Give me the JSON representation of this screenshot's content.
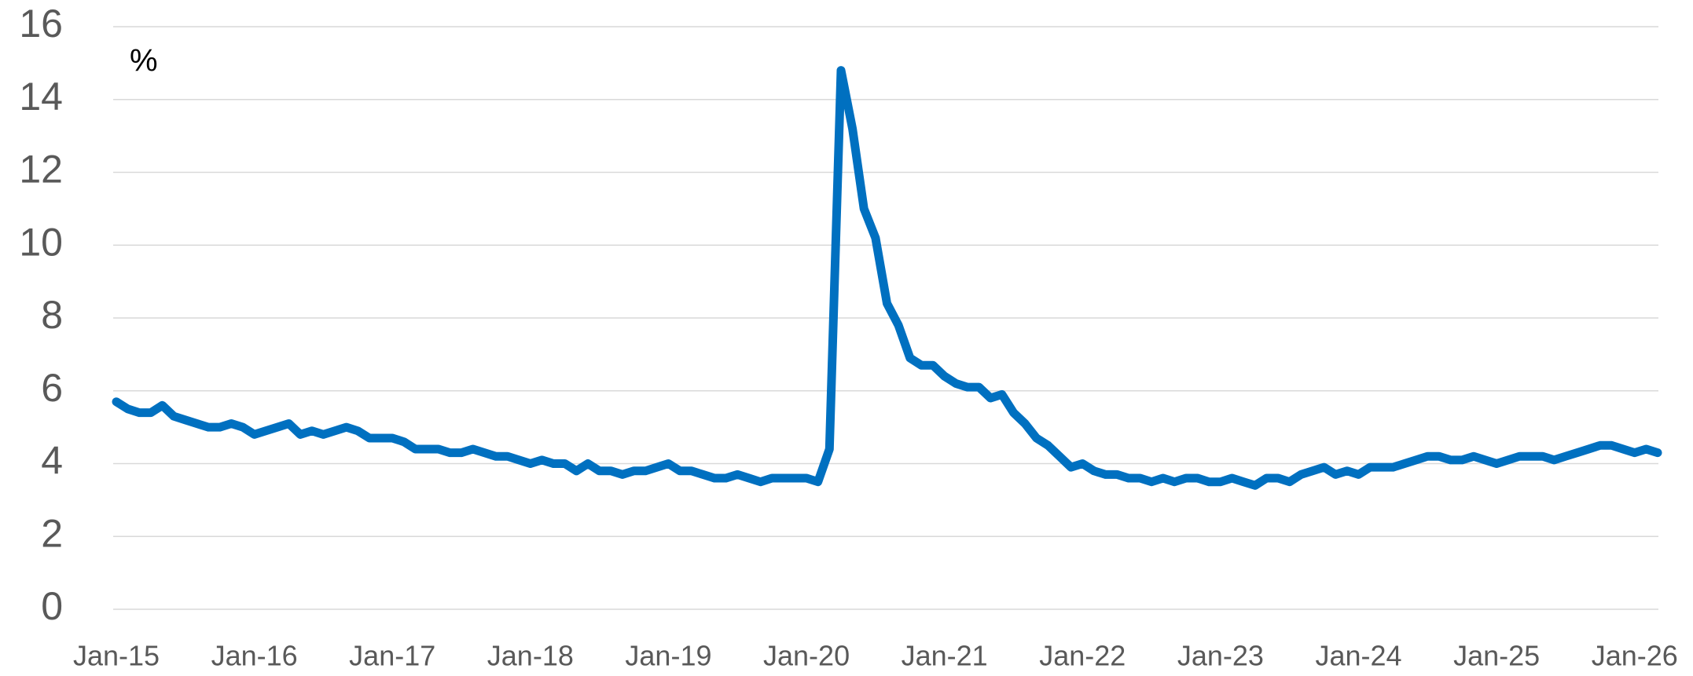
{
  "chart_data": {
    "type": "line",
    "unit_label": "%",
    "x": [
      "2015-01",
      "2015-02",
      "2015-03",
      "2015-04",
      "2015-05",
      "2015-06",
      "2015-07",
      "2015-08",
      "2015-09",
      "2015-10",
      "2015-11",
      "2015-12",
      "2016-01",
      "2016-02",
      "2016-03",
      "2016-04",
      "2016-05",
      "2016-06",
      "2016-07",
      "2016-08",
      "2016-09",
      "2016-10",
      "2016-11",
      "2016-12",
      "2017-01",
      "2017-02",
      "2017-03",
      "2017-04",
      "2017-05",
      "2017-06",
      "2017-07",
      "2017-08",
      "2017-09",
      "2017-10",
      "2017-11",
      "2017-12",
      "2018-01",
      "2018-02",
      "2018-03",
      "2018-04",
      "2018-05",
      "2018-06",
      "2018-07",
      "2018-08",
      "2018-09",
      "2018-10",
      "2018-11",
      "2018-12",
      "2019-01",
      "2019-02",
      "2019-03",
      "2019-04",
      "2019-05",
      "2019-06",
      "2019-07",
      "2019-08",
      "2019-09",
      "2019-10",
      "2019-11",
      "2019-12",
      "2020-01",
      "2020-02",
      "2020-03",
      "2020-04",
      "2020-05",
      "2020-06",
      "2020-07",
      "2020-08",
      "2020-09",
      "2020-10",
      "2020-11",
      "2020-12",
      "2021-01",
      "2021-02",
      "2021-03",
      "2021-04",
      "2021-05",
      "2021-06",
      "2021-07",
      "2021-08",
      "2021-09",
      "2021-10",
      "2021-11",
      "2021-12",
      "2022-01",
      "2022-02",
      "2022-03",
      "2022-04",
      "2022-05",
      "2022-06",
      "2022-07",
      "2022-08",
      "2022-09",
      "2022-10",
      "2022-11",
      "2022-12",
      "2023-01",
      "2023-02",
      "2023-03",
      "2023-04",
      "2023-05",
      "2023-06",
      "2023-07",
      "2023-08",
      "2023-09",
      "2023-10",
      "2023-11",
      "2023-12",
      "2024-01",
      "2024-02",
      "2024-03",
      "2024-04",
      "2024-05",
      "2024-06",
      "2024-07",
      "2024-08",
      "2024-09",
      "2024-10",
      "2024-11",
      "2024-12",
      "2025-01",
      "2025-02",
      "2025-03",
      "2025-04",
      "2025-05",
      "2025-06",
      "2025-07",
      "2025-08",
      "2025-09",
      "2025-10",
      "2025-11",
      "2025-12",
      "2026-01",
      "2026-02",
      "2026-03"
    ],
    "series": [
      {
        "color": "#0070c0",
        "values": [
          5.7,
          5.5,
          5.4,
          5.4,
          5.6,
          5.3,
          5.2,
          5.1,
          5.0,
          5.0,
          5.1,
          5.0,
          4.8,
          4.9,
          5.0,
          5.1,
          4.8,
          4.9,
          4.8,
          4.9,
          5.0,
          4.9,
          4.7,
          4.7,
          4.7,
          4.6,
          4.4,
          4.4,
          4.4,
          4.3,
          4.3,
          4.4,
          4.3,
          4.2,
          4.2,
          4.1,
          4.0,
          4.1,
          4.0,
          4.0,
          3.8,
          4.0,
          3.8,
          3.8,
          3.7,
          3.8,
          3.8,
          3.9,
          4.0,
          3.8,
          3.8,
          3.7,
          3.6,
          3.6,
          3.7,
          3.6,
          3.5,
          3.6,
          3.6,
          3.6,
          3.6,
          3.5,
          4.4,
          14.8,
          13.2,
          11.0,
          10.2,
          8.4,
          7.8,
          6.9,
          6.7,
          6.7,
          6.4,
          6.2,
          6.1,
          6.1,
          5.8,
          5.9,
          5.4,
          5.1,
          4.7,
          4.5,
          4.2,
          3.9,
          4.0,
          3.8,
          3.7,
          3.7,
          3.6,
          3.6,
          3.5,
          3.6,
          3.5,
          3.6,
          3.6,
          3.5,
          3.5,
          3.6,
          3.5,
          3.4,
          3.6,
          3.6,
          3.5,
          3.7,
          3.8,
          3.9,
          3.7,
          3.8,
          3.7,
          3.9,
          3.9,
          3.9,
          4.0,
          4.1,
          4.2,
          4.2,
          4.1,
          4.1,
          4.2,
          4.1,
          4.0,
          4.1,
          4.2,
          4.2,
          4.2,
          4.1,
          4.2,
          4.3,
          4.4,
          4.5,
          4.5,
          4.4,
          4.3,
          4.4,
          4.3
        ]
      }
    ],
    "xticks": [
      {
        "value": "2015-01",
        "label": "Jan-15"
      },
      {
        "value": "2016-01",
        "label": "Jan-16"
      },
      {
        "value": "2017-01",
        "label": "Jan-17"
      },
      {
        "value": "2018-01",
        "label": "Jan-18"
      },
      {
        "value": "2019-01",
        "label": "Jan-19"
      },
      {
        "value": "2020-01",
        "label": "Jan-20"
      },
      {
        "value": "2021-01",
        "label": "Jan-21"
      },
      {
        "value": "2022-01",
        "label": "Jan-22"
      },
      {
        "value": "2023-01",
        "label": "Jan-23"
      },
      {
        "value": "2024-01",
        "label": "Jan-24"
      },
      {
        "value": "2025-01",
        "label": "Jan-25"
      },
      {
        "value": "2026-01",
        "label": "Jan-26"
      }
    ],
    "ylim": [
      0,
      16
    ],
    "yticks": [
      0,
      2,
      4,
      6,
      8,
      10,
      12,
      14,
      16
    ],
    "grid": true
  }
}
